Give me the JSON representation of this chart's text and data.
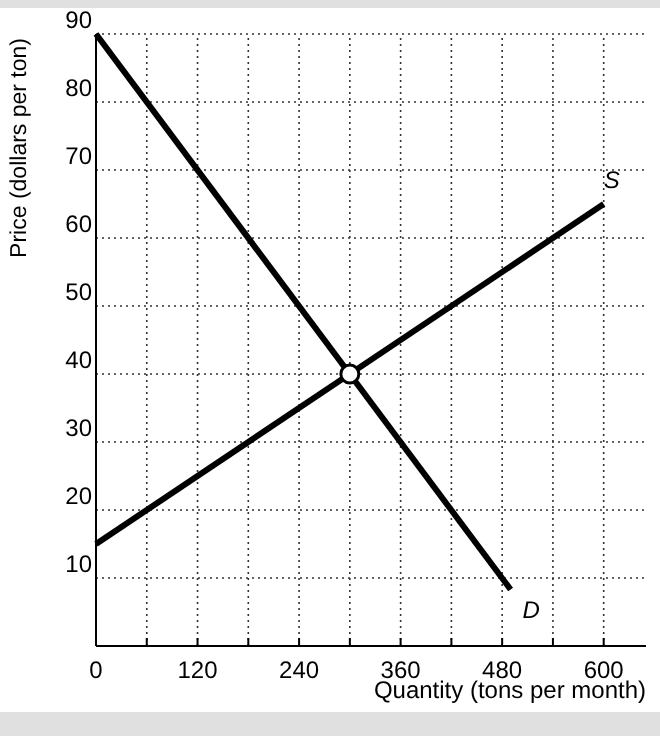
{
  "chart_data": {
    "type": "line",
    "xlabel": "Quantity (tons per month)",
    "ylabel": "Price (dollars per ton)",
    "xlim": [
      0,
      650
    ],
    "ylim": [
      0,
      90
    ],
    "xticks": [
      0,
      {
        "value": 60,
        "label": null
      },
      120,
      {
        "value": 180,
        "label": null
      },
      240,
      {
        "value": 300,
        "label": null
      },
      360,
      {
        "value": 420,
        "label": null
      },
      480,
      {
        "value": 540,
        "label": null
      },
      600
    ],
    "yticks": [
      10,
      20,
      30,
      40,
      50,
      60,
      70,
      80,
      90
    ],
    "grid": true,
    "line_style": "solid",
    "series": [
      {
        "color": "#000000",
        "x": [
          0,
          600
        ],
        "values": [
          15,
          65
        ],
        "marker": "none"
      },
      {
        "color": "#000000",
        "x": [
          0,
          490
        ],
        "values": [
          90,
          8.3
        ],
        "marker": "none"
      },
      {
        "type": "scatter",
        "color": "#000000",
        "x": [
          300
        ],
        "values": [
          40
        ],
        "marker": "circle"
      }
    ],
    "annotations": [
      {
        "text": "S",
        "x": 600,
        "y": 65
      },
      {
        "text": "D",
        "x": 490,
        "y": 8.3
      }
    ]
  }
}
